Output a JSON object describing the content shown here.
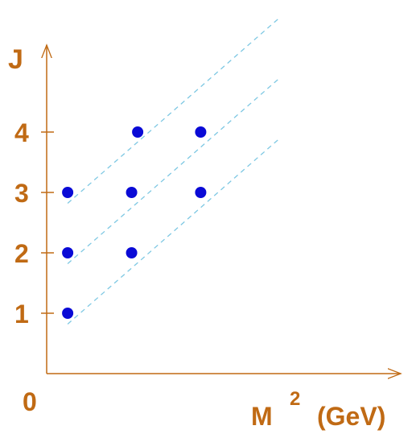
{
  "chart_data": {
    "type": "scatter",
    "title": "",
    "xlabel": {
      "base": "M",
      "superscript": "2",
      "unit": "(GeV)"
    },
    "ylabel": "J",
    "origin_label": "0",
    "y_ticks": [
      "1",
      "2",
      "3",
      "4"
    ],
    "grid": false,
    "colors": {
      "axes": "#c06a14",
      "points": "#0a0ad6",
      "trend_lines": "#7ec8e3"
    },
    "series": [
      {
        "points": [
          {
            "x": 0.45,
            "y": 3
          },
          {
            "x": 1.95,
            "y": 4
          }
        ]
      },
      {
        "points": [
          {
            "x": 0.45,
            "y": 2
          },
          {
            "x": 1.82,
            "y": 3
          },
          {
            "x": 3.3,
            "y": 4
          }
        ]
      },
      {
        "points": [
          {
            "x": 0.45,
            "y": 1
          },
          {
            "x": 1.82,
            "y": 2
          },
          {
            "x": 3.3,
            "y": 3
          }
        ]
      }
    ],
    "trend_lines": [
      {
        "x": [
          0.45,
          5.0
        ],
        "y": [
          2.82,
          5.9
        ]
      },
      {
        "x": [
          0.45,
          5.0
        ],
        "y": [
          1.82,
          4.9
        ]
      },
      {
        "x": [
          0.45,
          5.0
        ],
        "y": [
          0.82,
          3.9
        ]
      }
    ]
  }
}
